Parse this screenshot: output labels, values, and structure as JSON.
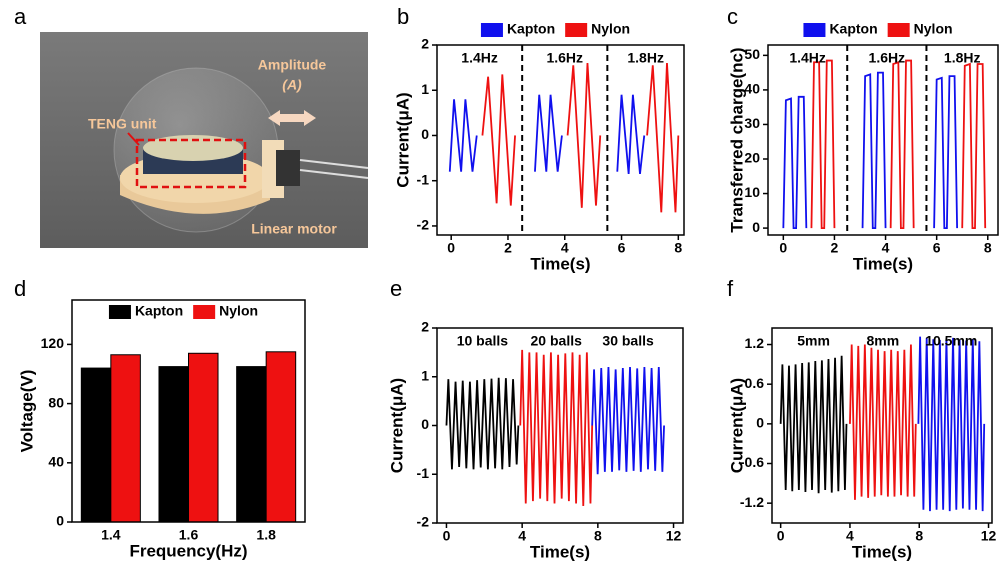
{
  "illustration": {
    "panel_label": "a",
    "labels": [
      "TENG unit",
      "Amplitude",
      "(A)",
      "Linear motor"
    ]
  },
  "chart_data": [
    {
      "type": "line",
      "panel_label": "b",
      "x_label": "Time(s)",
      "y_label": "Current(μA)",
      "legend_position": "top",
      "xlim": [
        -0.5,
        8.2
      ],
      "ylim": [
        -2.2,
        2
      ],
      "xticks": [
        0,
        2,
        4,
        6,
        8
      ],
      "yticks": [
        -2,
        -1,
        0,
        1,
        2
      ],
      "dividers": [
        2.5,
        5.5
      ],
      "segment_labels": [
        "1.4Hz",
        "1.6Hz",
        "1.8Hz"
      ],
      "series": [
        {
          "name": "Kapton",
          "color": "#1010ee",
          "x": [
            -0.05,
            0.1,
            0.35,
            0.5,
            0.75,
            0.9,
            1.0,
            2.95,
            3.1,
            3.35,
            3.5,
            3.75,
            3.9,
            4.0,
            5.85,
            6.0,
            6.25,
            6.4,
            6.65,
            6.8
          ],
          "values": [
            -0.8,
            0.8,
            -0.8,
            0.8,
            -0.8,
            0,
            null,
            -0.8,
            0.9,
            -0.8,
            0.9,
            -0.8,
            0,
            null,
            -0.8,
            0.9,
            -0.85,
            0.9,
            -0.85,
            0
          ]
        },
        {
          "name": "Nylon",
          "color": "#ee1111",
          "x": [
            1.1,
            1.3,
            1.6,
            1.8,
            2.1,
            2.25,
            2.4,
            4.1,
            4.3,
            4.6,
            4.8,
            5.1,
            5.25,
            5.4,
            6.9,
            7.1,
            7.4,
            7.6,
            7.9,
            8.0
          ],
          "values": [
            0,
            1.3,
            -1.5,
            1.35,
            -1.55,
            0,
            null,
            0,
            1.55,
            -1.6,
            1.6,
            -1.55,
            0,
            null,
            0,
            1.55,
            -1.7,
            1.6,
            -1.7,
            0
          ]
        }
      ]
    },
    {
      "type": "line",
      "panel_label": "c",
      "x_label": "Time(s)",
      "y_label": "Transferred charge(nc)",
      "legend_position": "top",
      "xlim": [
        -0.6,
        8.4
      ],
      "ylim": [
        -2,
        53
      ],
      "xticks": [
        0,
        2,
        4,
        6,
        8
      ],
      "yticks": [
        0,
        10,
        20,
        30,
        40,
        50
      ],
      "dividers": [
        2.5,
        5.6
      ],
      "segment_labels": [
        "1.4Hz",
        "1.6Hz",
        "1.8Hz"
      ],
      "series": [
        {
          "name": "Kapton",
          "color": "#1010ee",
          "x": [
            0,
            0.1,
            0.3,
            0.4,
            0.5,
            0.6,
            0.8,
            0.9,
            1.0,
            3.1,
            3.2,
            3.4,
            3.5,
            3.6,
            3.7,
            3.9,
            4.0,
            4.1,
            5.9,
            6.0,
            6.2,
            6.3,
            6.4,
            6.5,
            6.7,
            6.8
          ],
          "values": [
            0,
            37,
            37.5,
            0,
            0,
            38,
            38,
            0,
            null,
            0,
            44,
            44.5,
            0,
            0,
            45,
            45,
            0,
            null,
            0,
            43,
            43.5,
            0,
            0,
            44,
            44,
            0
          ]
        },
        {
          "name": "Nylon",
          "color": "#ee1111",
          "x": [
            1.1,
            1.2,
            1.4,
            1.5,
            1.6,
            1.7,
            1.9,
            2.0,
            2.2,
            4.2,
            4.3,
            4.5,
            4.6,
            4.7,
            4.8,
            5.0,
            5.1,
            5.3,
            7.0,
            7.1,
            7.3,
            7.4,
            7.5,
            7.6,
            7.8,
            7.9
          ],
          "values": [
            0,
            48,
            48,
            0,
            0,
            48.5,
            48.5,
            0,
            null,
            0,
            47.5,
            48,
            0,
            0,
            48.5,
            48.5,
            0,
            null,
            0,
            47,
            47.5,
            0,
            0,
            47.5,
            47.5,
            0
          ]
        }
      ]
    },
    {
      "type": "bar",
      "panel_label": "d",
      "x_label": "Frequency(Hz)",
      "y_label": "Voltage(V)",
      "legend_position": "inside-top",
      "categories": [
        "1.4",
        "1.6",
        "1.8"
      ],
      "ylim": [
        0,
        150
      ],
      "yticks": [
        0,
        40,
        80,
        120
      ],
      "series": [
        {
          "name": "Kapton",
          "color": "#000000",
          "values": [
            104,
            105,
            105
          ]
        },
        {
          "name": "Nylon",
          "color": "#ee1111",
          "values": [
            113,
            114,
            115
          ]
        }
      ]
    },
    {
      "type": "line",
      "panel_label": "e",
      "x_label": "Time(s)",
      "y_label": "Current(μA)",
      "legend_position": "in-plot",
      "xlim": [
        -0.5,
        12.5
      ],
      "ylim": [
        -2,
        2
      ],
      "xticks": [
        0,
        4,
        8,
        12
      ],
      "yticks": [
        -2,
        -1,
        0,
        1,
        2
      ],
      "series": [
        {
          "name": "10 balls",
          "color": "#000000",
          "x": [
            0,
            0.1,
            0.29,
            0.48,
            0.67,
            0.86,
            1.05,
            1.24,
            1.43,
            1.62,
            1.81,
            2.0,
            2.19,
            2.38,
            2.57,
            2.76,
            2.95,
            3.14,
            3.33,
            3.52,
            3.71,
            3.8
          ],
          "values": [
            0,
            0.95,
            -0.9,
            0.9,
            -0.85,
            0.92,
            -0.88,
            0.9,
            -0.9,
            0.93,
            -0.86,
            0.95,
            -0.9,
            0.96,
            -0.88,
            0.98,
            -0.9,
            0.97,
            -0.85,
            0.95,
            -0.8,
            0
          ]
        },
        {
          "name": "20 balls",
          "color": "#ee1111",
          "x": [
            3.9,
            4.0,
            4.19,
            4.38,
            4.57,
            4.76,
            4.95,
            5.14,
            5.33,
            5.52,
            5.71,
            5.9,
            6.09,
            6.28,
            6.47,
            6.66,
            6.85,
            7.04,
            7.23,
            7.42,
            7.61,
            7.7
          ],
          "values": [
            0,
            1.55,
            -1.6,
            1.5,
            -1.55,
            1.5,
            -1.5,
            1.45,
            -1.55,
            1.5,
            -1.6,
            1.45,
            -1.5,
            1.48,
            -1.55,
            1.5,
            -1.6,
            1.45,
            -1.65,
            1.5,
            -1.6,
            0
          ]
        },
        {
          "name": "30 balls",
          "color": "#1010ee",
          "x": [
            7.7,
            7.8,
            7.99,
            8.18,
            8.37,
            8.56,
            8.75,
            8.94,
            9.13,
            9.32,
            9.51,
            9.7,
            9.89,
            10.08,
            10.27,
            10.46,
            10.65,
            10.84,
            11.03,
            11.22,
            11.41,
            11.5
          ],
          "values": [
            0,
            1.15,
            -1.0,
            1.18,
            -0.95,
            1.2,
            -0.95,
            1.15,
            -0.92,
            1.18,
            -0.95,
            1.2,
            -0.93,
            1.17,
            -0.95,
            1.2,
            -0.9,
            1.18,
            -0.93,
            1.2,
            -0.95,
            0
          ]
        }
      ]
    },
    {
      "type": "line",
      "panel_label": "f",
      "x_label": "Time(s)",
      "y_label": "Current(μA)",
      "legend_position": "in-plot",
      "xlim": [
        -0.5,
        12.2
      ],
      "ylim": [
        -1.5,
        1.45
      ],
      "xticks": [
        0,
        4,
        8,
        12
      ],
      "yticks": [
        -1.2,
        -0.6,
        0,
        0.6,
        1.2
      ],
      "series": [
        {
          "name": "5mm",
          "color": "#000000",
          "x": [
            0,
            0.1,
            0.29,
            0.48,
            0.67,
            0.86,
            1.05,
            1.24,
            1.43,
            1.62,
            1.81,
            2.0,
            2.19,
            2.38,
            2.57,
            2.76,
            2.95,
            3.14,
            3.33,
            3.52,
            3.71,
            3.8
          ],
          "values": [
            0,
            0.9,
            -1.0,
            0.88,
            -1.02,
            0.9,
            -1.0,
            0.92,
            -1.03,
            0.93,
            -1.0,
            0.95,
            -1.05,
            0.96,
            -1.0,
            0.98,
            -1.04,
            1.0,
            -1.02,
            1.03,
            -1.0,
            0
          ]
        },
        {
          "name": "8mm",
          "color": "#ee1111",
          "x": [
            4.0,
            4.1,
            4.29,
            4.48,
            4.67,
            4.86,
            5.05,
            5.24,
            5.43,
            5.62,
            5.81,
            6.0,
            6.19,
            6.38,
            6.57,
            6.76,
            6.95,
            7.14,
            7.33,
            7.52,
            7.71,
            7.8
          ],
          "values": [
            0,
            1.2,
            -1.15,
            1.18,
            -1.1,
            1.2,
            -1.12,
            1.15,
            -1.1,
            1.12,
            -1.08,
            1.1,
            -1.1,
            1.12,
            -1.1,
            1.1,
            -1.08,
            1.12,
            -1.1,
            1.2,
            -1.1,
            0
          ]
        },
        {
          "name": "10.5mm",
          "color": "#1010ee",
          "x": [
            7.95,
            8.05,
            8.24,
            8.43,
            8.62,
            8.81,
            9.0,
            9.19,
            9.38,
            9.57,
            9.76,
            9.95,
            10.14,
            10.33,
            10.52,
            10.71,
            10.9,
            11.09,
            11.28,
            11.47,
            11.66,
            11.75
          ],
          "values": [
            0,
            1.32,
            -1.3,
            1.3,
            -1.32,
            1.28,
            -1.3,
            1.27,
            -1.3,
            1.28,
            -1.32,
            1.3,
            -1.3,
            1.27,
            -1.28,
            1.26,
            -1.3,
            1.28,
            -1.3,
            1.25,
            -1.32,
            0
          ]
        }
      ]
    }
  ]
}
